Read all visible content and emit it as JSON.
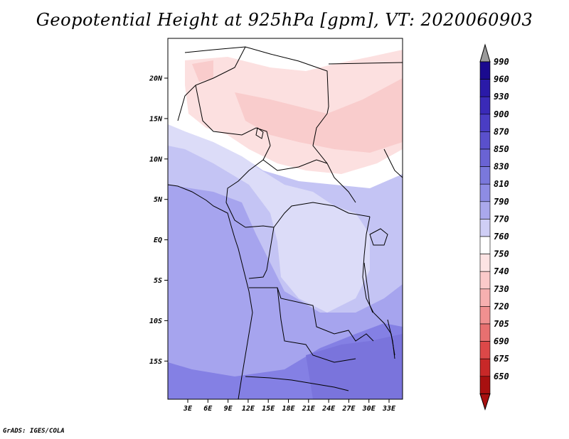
{
  "title": "Geopotential Height at 925hPa [gpm], VT: 2020060903",
  "credit": "GrADS: IGES/COLA",
  "map": {
    "lat_ticks": [
      "20N",
      "15N",
      "10N",
      "5N",
      "EQ",
      "5S",
      "10S",
      "15S"
    ],
    "lon_ticks": [
      "3E",
      "6E",
      "9E",
      "12E",
      "15E",
      "18E",
      "21E",
      "24E",
      "27E",
      "30E",
      "33E"
    ]
  },
  "legend": {
    "levels": [
      "990",
      "960",
      "930",
      "900",
      "870",
      "850",
      "830",
      "810",
      "790",
      "770",
      "760",
      "750",
      "740",
      "730",
      "720",
      "705",
      "690",
      "675",
      "650"
    ],
    "colors": [
      "#1a0a8f",
      "#2a1aa8",
      "#3a2ab8",
      "#4a3dc4",
      "#5a50cc",
      "#6a63d4",
      "#7a78dc",
      "#8e8ce4",
      "#aaa8ec",
      "#cfcef5",
      "#ffffff",
      "#fde3e3",
      "#fbcaca",
      "#f7b0b0",
      "#f09090",
      "#e87070",
      "#dc4848",
      "#c82828",
      "#a81010"
    ],
    "top_arrow_color": "#9a9a9a"
  },
  "colors": {
    "deep_blue": "#8480e4",
    "mid_blue": "#a6a4ee",
    "light_blue": "#c4c4f4",
    "pale_blue": "#dcdcf8",
    "white": "#ffffff",
    "pale_pink": "#fce0e0",
    "pink": "#f9cccc"
  }
}
